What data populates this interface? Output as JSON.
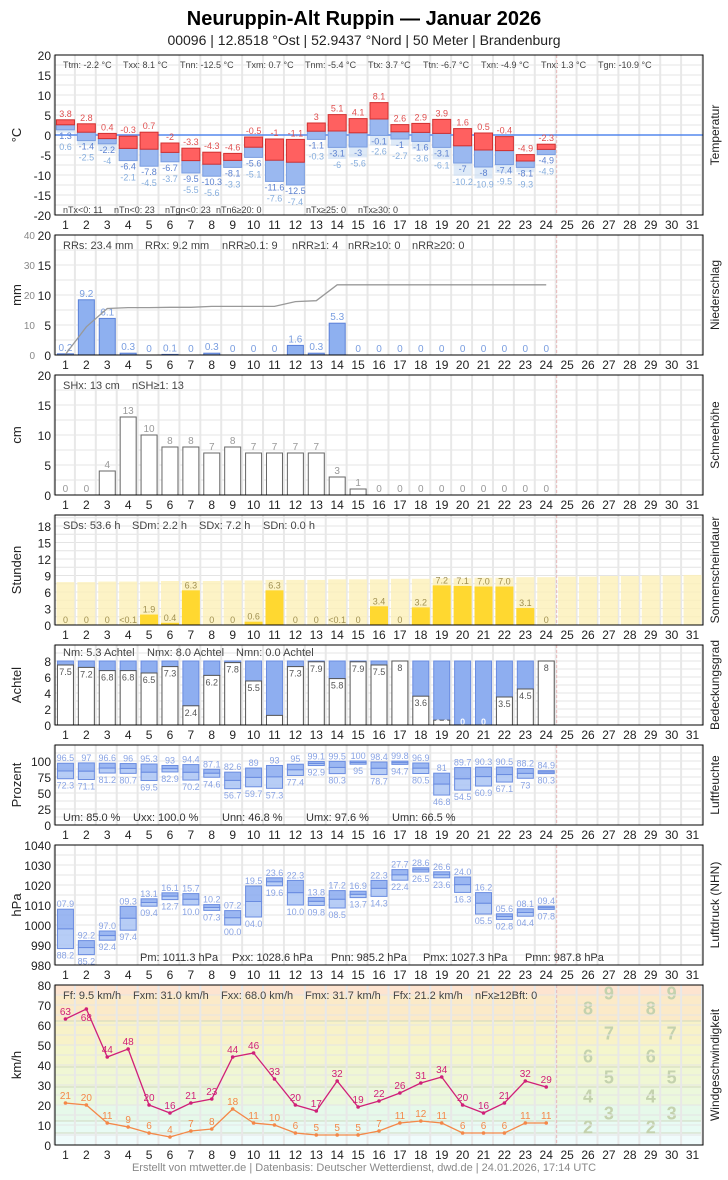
{
  "header": {
    "title": "Neuruppin-Alt Ruppin  —  Januar 2026",
    "subtitle": "00096  |  12.8518 °Ost  |  52.9437 °Nord  |  50 Meter  |  Brandenburg"
  },
  "footer": "Erstellt von mtwetter.de | Datenbasis: Deutscher Wetterdienst, dwd.de | 24.01.2026, 17:14 UTC",
  "days": [
    "1",
    "2",
    "3",
    "4",
    "5",
    "6",
    "7",
    "8",
    "9",
    "10",
    "11",
    "12",
    "13",
    "14",
    "15",
    "16",
    "17",
    "18",
    "19",
    "20",
    "21",
    "22",
    "23",
    "24",
    "25",
    "26",
    "27",
    "28",
    "29",
    "30",
    "31"
  ],
  "colors": {
    "tmax": "#ff6060",
    "tmin": "#9ab8f0",
    "tground": "#c8dcf4",
    "precip": "#8eb0f0",
    "sun": "#ffd830",
    "sun_possible": "#fdf0b8",
    "gust": "#d02078",
    "wind": "#f48848",
    "zero_line": "#5588ee",
    "today_line": "#e8b8b8"
  },
  "chart_data": [
    {
      "type": "bar",
      "id": "temperature",
      "ylabel": "°C",
      "side_label": "Temperatur",
      "ylim": [
        -20,
        20
      ],
      "yticks": [
        "20",
        "15",
        "10",
        "5",
        "0",
        "-5",
        "-10",
        "-15",
        "-20"
      ],
      "stats_top": [
        "Ttm: -2.2 °C",
        "Txx: 8.1 °C",
        "Tnn: -12.5 °C",
        "Txm: 0.7 °C",
        "Tnm: -5.4 °C",
        "Ttx: 3.7 °C",
        "Ttn: -6.7 °C",
        "Txn: -4.9 °C",
        "Tnx: 1.3 °C",
        "Tgn: -10.9 °C"
      ],
      "stats_bottom": [
        "nTx<0: 11",
        "nTn<0: 23",
        "nTgn<0: 23",
        "nTn6≥20: 0",
        "nTx≥25: 0",
        "nTx≥30: 0"
      ],
      "series": [
        {
          "name": "Tx",
          "values": [
            3.8,
            2.8,
            0.4,
            -0.3,
            0.7,
            -2.0,
            -3.3,
            -4.3,
            -4.6,
            -0.5,
            -1.0,
            -1.1,
            3.0,
            5.1,
            4.1,
            8.1,
            2.6,
            2.9,
            3.9,
            1.6,
            0.5,
            -0.4,
            -4.9,
            -2.3
          ]
        },
        {
          "name": "Tn",
          "values": [
            1.3,
            -1.4,
            -2.2,
            -6.4,
            -7.8,
            -6.7,
            -9.5,
            -10.3,
            -8.1,
            -5.6,
            -11.6,
            -12.5,
            -1.1,
            -3.1,
            -3.0,
            -0.1,
            -1.0,
            -1.6,
            -3.1,
            -7.0,
            -8.0,
            -7.4,
            -8.1,
            -4.9
          ]
        },
        {
          "name": "Tgn",
          "values": [
            0.6,
            -2.5,
            -4.0,
            -2.1,
            -4.5,
            -3.7,
            -5.5,
            -5.6,
            -3.3,
            -5.1,
            -7.6,
            -7.4,
            -0.3,
            -6.0,
            -5.6,
            -2.6,
            -2.7,
            -3.6,
            -6.1,
            -10.2,
            -10.9,
            -9.5,
            -9.3,
            -4.9
          ]
        }
      ]
    },
    {
      "type": "bar",
      "id": "precipitation",
      "ylabel": "mm",
      "side_label": "Niederschlag",
      "ylim": [
        0,
        20
      ],
      "y2lim": [
        0,
        40
      ],
      "yticks": [
        "20",
        "15",
        "10",
        "5",
        "0"
      ],
      "y2ticks": [
        "40",
        "30",
        "20",
        "10",
        "0"
      ],
      "stats_top": [
        "RRs: 23.4 mm",
        "RRx: 9.2 mm",
        "nRR≥0.1: 9",
        "nRR≥1: 4",
        "nRR≥10: 0",
        "nRR≥20: 0"
      ],
      "values": [
        0.2,
        9.2,
        6.1,
        0.3,
        0,
        0.1,
        0,
        0.3,
        0,
        0,
        0,
        1.6,
        0.3,
        5.3,
        0,
        0,
        0,
        0,
        0,
        0,
        0,
        0,
        0,
        0
      ]
    },
    {
      "type": "bar",
      "id": "snow",
      "ylabel": "cm",
      "side_label": "Schneehöhe",
      "ylim": [
        0,
        20
      ],
      "yticks": [
        "20",
        "15",
        "10",
        "5",
        "0"
      ],
      "stats_top": [
        "SHx: 13 cm",
        "nSH≥1: 13"
      ],
      "values": [
        0,
        0,
        4,
        13,
        10,
        8,
        8,
        7,
        8,
        7,
        7,
        7,
        7,
        3,
        1,
        0,
        0,
        0,
        0,
        0,
        0,
        0,
        0,
        0
      ]
    },
    {
      "type": "bar",
      "id": "sunshine",
      "ylabel": "Stunden",
      "side_label": "Sonnenscheindauer",
      "ylim": [
        0,
        20
      ],
      "yticks": [
        "18",
        "15",
        "12",
        "9",
        "6",
        "3",
        "0"
      ],
      "stats_top": [
        "SDs: 53.6 h",
        "SDm: 2.2 h",
        "SDx: 7.2 h",
        "SDn: 0.0 h"
      ],
      "values": [
        "0",
        "0",
        "0",
        "<0.1",
        "1.9",
        "0.4",
        "6.3",
        "0",
        "0",
        "0.6",
        "6.3",
        "0",
        "0",
        "<0.1",
        "0",
        "3.4",
        "0",
        "3.2",
        "7.2",
        "7.1",
        "7.0",
        "7.0",
        "3.1",
        "0"
      ],
      "possible": [
        7.8,
        7.8,
        7.9,
        7.9,
        7.9,
        8.0,
        8.0,
        8.0,
        8.1,
        8.1,
        8.2,
        8.2,
        8.2,
        8.3,
        8.3,
        8.3,
        8.4,
        8.4,
        8.5,
        8.5,
        8.6,
        8.6,
        8.7,
        8.7,
        8.8,
        8.8,
        8.9,
        8.9,
        9.0,
        9.0,
        9.1
      ]
    },
    {
      "type": "bar",
      "id": "cloud",
      "ylabel": "Achtel",
      "side_label": "Bedeckungsgrad",
      "ylim": [
        0,
        10
      ],
      "yticks": [
        "8",
        "6",
        "4",
        "2",
        "0"
      ],
      "stats_top": [
        "Nm: 5.3 Achtel",
        "Nmx: 8.0 Achtel",
        "Nmn: 0.0 Achtel"
      ],
      "values": [
        7.5,
        7.2,
        6.8,
        6.8,
        6.5,
        7.3,
        2.4,
        6.2,
        7.8,
        5.5,
        1.2,
        7.3,
        7.9,
        5.8,
        7.9,
        7.5,
        8.0,
        3.6,
        0.6,
        0.0,
        0.0,
        3.5,
        4.5,
        8.0
      ]
    },
    {
      "type": "bar",
      "id": "humidity",
      "ylabel": "Prozent",
      "side_label": "Luftfeuchte",
      "ylim": [
        0,
        125
      ],
      "yticks": [
        "100",
        "75",
        "50",
        "25",
        "0"
      ],
      "stats_top": [
        "Um: 85.0 %",
        "Uxx: 100.0 %",
        "Unn: 46.8 %",
        "Umx: 97.6 %",
        "Umn: 66.5 %"
      ],
      "max": [
        96.5,
        97.0,
        96.6,
        96.0,
        95.3,
        93.0,
        94.4,
        87.1,
        82.6,
        89.0,
        93.0,
        95.0,
        99.1,
        99.5,
        100,
        98.4,
        99.8,
        96.9,
        81.0,
        89.7,
        90.3,
        90.5,
        88.2,
        84.9
      ],
      "min": [
        72.3,
        71.1,
        81.2,
        80.7,
        69.5,
        82.9,
        70.2,
        74.6,
        56.7,
        59.7,
        57.3,
        77.4,
        92.9,
        80.3,
        95.0,
        78.7,
        94.7,
        80.5,
        46.8,
        54.5,
        60.9,
        67.1,
        73.0,
        80.3
      ]
    },
    {
      "type": "bar",
      "id": "pressure",
      "ylabel": "hPa",
      "side_label": "Luftdruck (NHN)",
      "ylim": [
        980,
        1040
      ],
      "yticks": [
        "1040",
        "1030",
        "1020",
        "1010",
        "1000",
        "990",
        "980"
      ],
      "stats_top": [
        "Pm: 1011.3 hPa",
        "Pxx: 1028.6 hPa",
        "Pnn: 985.2 hPa",
        "Pmx: 1027.3 hPa",
        "Pmn: 987.8 hPa"
      ],
      "max": [
        1007.9,
        992.2,
        997.0,
        1009.3,
        1013.1,
        1016.1,
        1015.7,
        1010.2,
        1007.2,
        1019.5,
        1023.6,
        1022.3,
        1013.8,
        1017.2,
        1016.9,
        1022.3,
        1027.7,
        1028.6,
        1026.6,
        1024.0,
        1016.2,
        1005.6,
        1008.1,
        1009.4
      ],
      "min": [
        988.2,
        985.2,
        992.4,
        997.4,
        1009.4,
        1012.7,
        1010.0,
        1007.3,
        1000.0,
        1004.0,
        1019.6,
        1010.0,
        1009.8,
        1008.5,
        1013.7,
        1014.3,
        1022.4,
        1026.5,
        1023.6,
        1016.3,
        1005.5,
        1002.8,
        1004.4,
        1007.8
      ]
    },
    {
      "type": "line",
      "id": "wind",
      "ylabel": "km/h",
      "side_label": "Windgeschwindigkeit",
      "ylim": [
        0,
        80
      ],
      "yticks": [
        "80",
        "70",
        "60",
        "50",
        "40",
        "30",
        "20",
        "10",
        "0"
      ],
      "stats_top": [
        "Ff: 9.5 km/h",
        "Fxm: 31.0 km/h",
        "Fxx: 68.0 km/h",
        "Fmx: 31.7 km/h",
        "Ffx: 21.2 km/h",
        "nFx≥12Bft: 0"
      ],
      "beaufort_labels": [
        "2",
        "3",
        "4",
        "5",
        "6",
        "7",
        "8",
        "9"
      ],
      "series": [
        {
          "name": "Fx",
          "values": [
            63,
            68,
            44,
            48,
            20,
            16,
            21,
            23,
            44,
            46,
            33,
            20,
            17,
            32,
            19,
            22,
            26,
            31,
            34,
            20,
            16,
            21,
            32,
            29
          ]
        },
        {
          "name": "Ff",
          "values": [
            21,
            20,
            11,
            9,
            6,
            4,
            7,
            8,
            18,
            11,
            10,
            6,
            5,
            5,
            5,
            7,
            11,
            12,
            11,
            6,
            6,
            6,
            11,
            11
          ]
        }
      ]
    }
  ]
}
